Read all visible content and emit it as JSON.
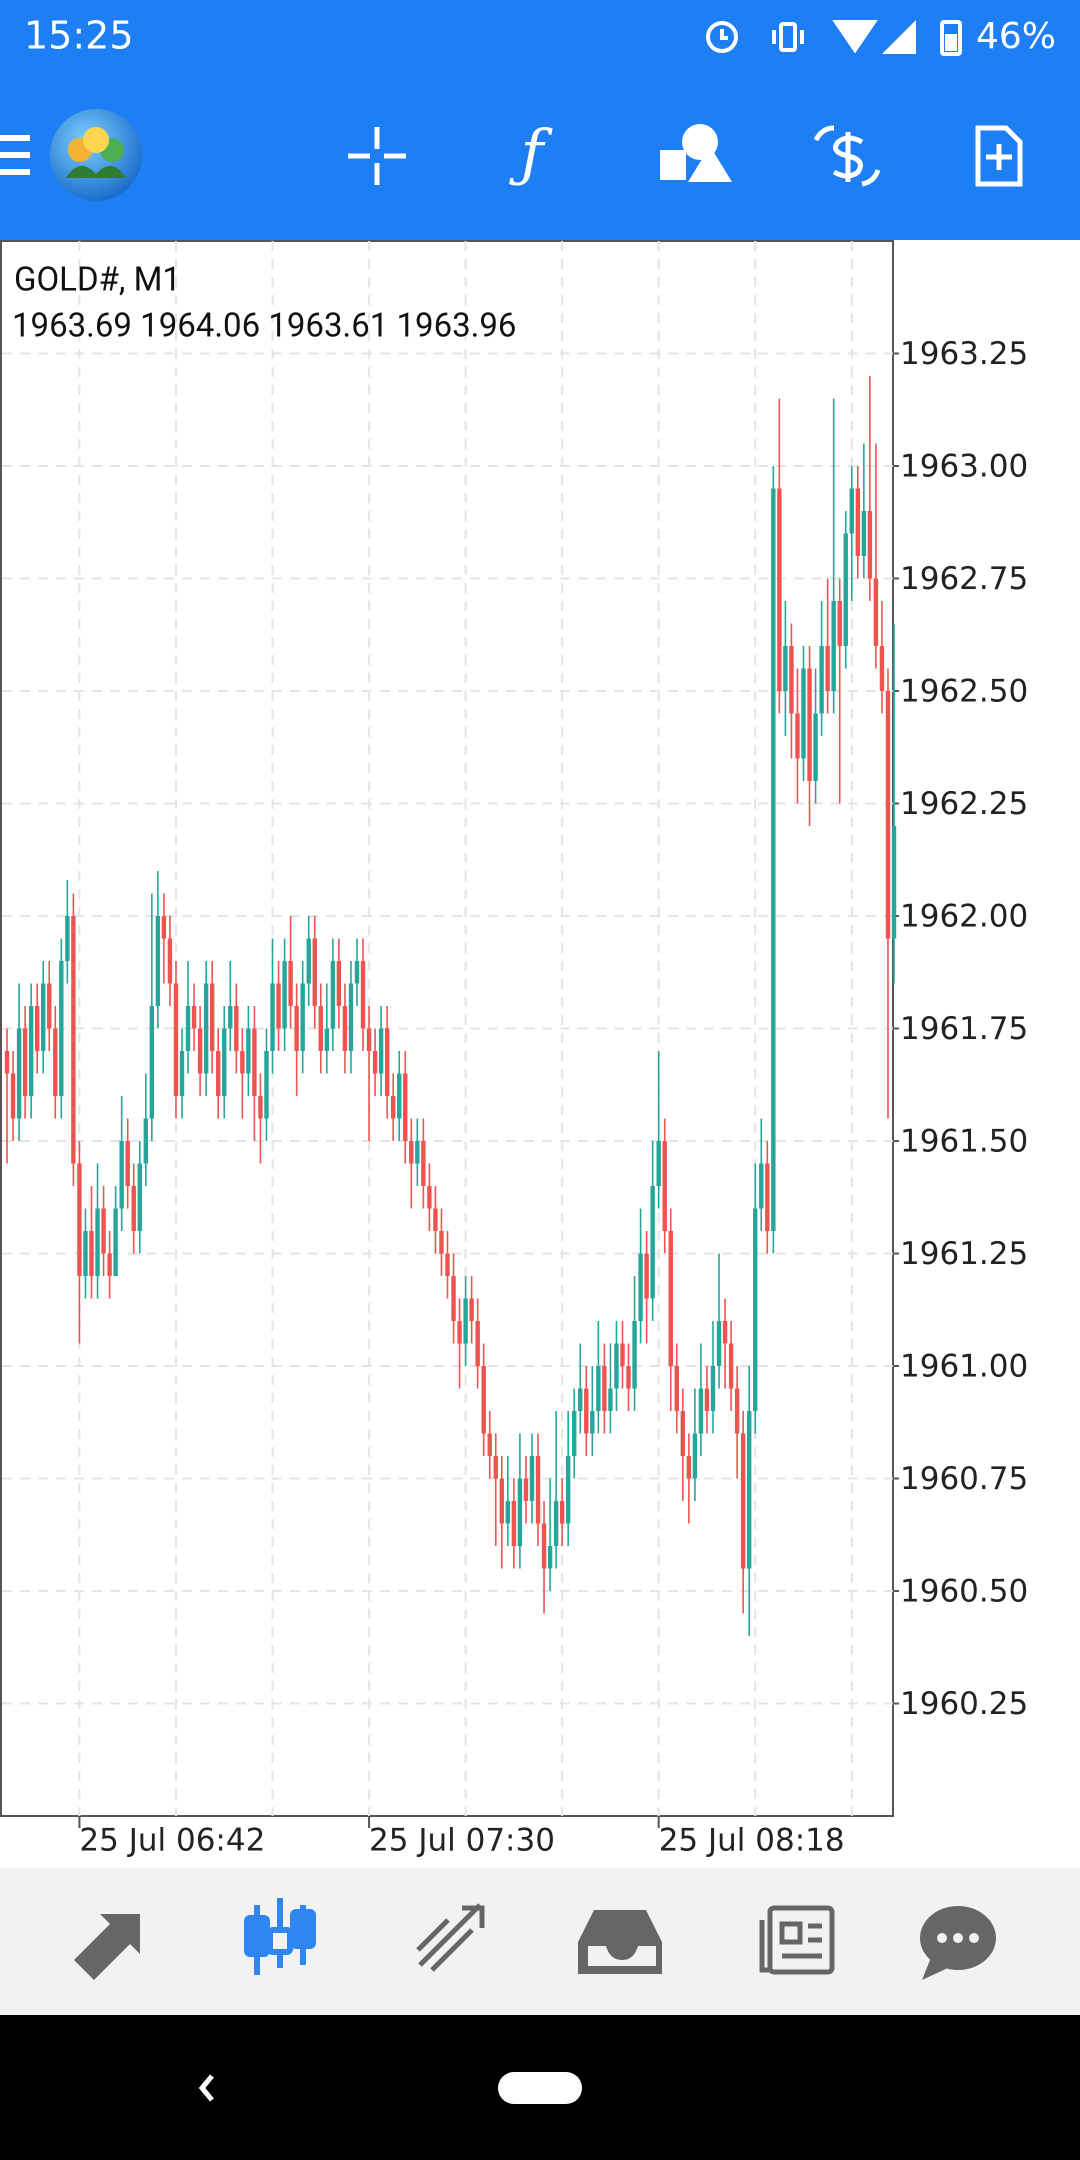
{
  "status_bar": {
    "time": "15:25",
    "battery": "46%"
  },
  "chart_data": {
    "type": "candlestick",
    "title": "GOLD#, M1",
    "subtitle": "1963.69 1964.06 1963.61 1963.96",
    "up_color": "#26a69a",
    "down_color": "#ef5350",
    "grid": true,
    "ylim": [
      1960,
      1963.5
    ],
    "yticks": [
      1963.25,
      {
        "value": 1963,
        "label": "1963.00"
      },
      1962.75,
      {
        "value": 1962.5,
        "label": "1962.50"
      },
      1962.25,
      {
        "value": 1962,
        "label": "1962.00"
      },
      1961.75,
      {
        "value": 1961.5,
        "label": "1961.50"
      },
      1961.25,
      {
        "value": 1961,
        "label": "1961.00"
      },
      1960.75,
      {
        "value": 1960.5,
        "label": "1960.50"
      },
      1960.25
    ],
    "categories": [
      null,
      null,
      null,
      null,
      null,
      null,
      null,
      null,
      null,
      null,
      null,
      null,
      "25 Jul 06:42",
      null,
      null,
      null,
      null,
      null,
      null,
      null,
      null,
      null,
      null,
      null,
      null,
      null,
      null,
      null,
      null,
      null,
      null,
      null,
      null,
      null,
      null,
      null,
      null,
      null,
      null,
      null,
      null,
      null,
      null,
      null,
      null,
      null,
      null,
      null,
      null,
      null,
      null,
      null,
      null,
      null,
      null,
      null,
      null,
      null,
      null,
      null,
      "25 Jul 07:30",
      null,
      null,
      null,
      null,
      null,
      null,
      null,
      null,
      null,
      null,
      null,
      null,
      null,
      null,
      null,
      null,
      null,
      null,
      null,
      null,
      null,
      null,
      null,
      null,
      null,
      null,
      null,
      null,
      null,
      null,
      null,
      null,
      null,
      null,
      null,
      null,
      null,
      null,
      null,
      null,
      null,
      null,
      null,
      null,
      null,
      null,
      null,
      "25 Jul 08:18",
      null,
      null,
      null,
      null,
      null,
      null,
      null,
      null,
      null,
      null,
      null,
      null,
      null,
      null,
      null,
      null,
      null,
      null,
      null,
      null,
      null,
      null,
      null,
      null,
      null,
      null,
      null,
      null,
      null,
      null,
      null,
      null,
      null,
      null,
      null,
      null,
      null,
      null
    ],
    "ohlc": [
      [
        1961.7,
        1961.75,
        1961.45,
        1961.65
      ],
      [
        1961.65,
        1961.7,
        1961.5,
        1961.55
      ],
      [
        1961.55,
        1961.85,
        1961.5,
        1961.75
      ],
      [
        1961.75,
        1961.8,
        1961.55,
        1961.6
      ],
      [
        1961.6,
        1961.85,
        1961.55,
        1961.8
      ],
      [
        1961.8,
        1961.85,
        1961.65,
        1961.7
      ],
      [
        1961.7,
        1961.9,
        1961.65,
        1961.85
      ],
      [
        1961.85,
        1961.9,
        1961.7,
        1961.75
      ],
      [
        1961.75,
        1961.8,
        1961.55,
        1961.6
      ],
      [
        1961.6,
        1961.95,
        1961.55,
        1961.9
      ],
      [
        1961.9,
        1962.08,
        1961.85,
        1962
      ],
      [
        1962,
        1962.05,
        1961.4,
        1961.45
      ],
      [
        1961.45,
        1961.5,
        1961.05,
        1961.2
      ],
      [
        1961.2,
        1961.35,
        1961.15,
        1961.3
      ],
      [
        1961.3,
        1961.4,
        1961.15,
        1961.2
      ],
      [
        1961.2,
        1961.45,
        1961.15,
        1961.35
      ],
      [
        1961.35,
        1961.4,
        1961.2,
        1961.25
      ],
      [
        1961.25,
        1961.3,
        1961.15,
        1961.2
      ],
      [
        1961.2,
        1961.4,
        1961.2,
        1961.35
      ],
      [
        1961.35,
        1961.6,
        1961.3,
        1961.5
      ],
      [
        1961.5,
        1961.55,
        1961.35,
        1961.4
      ],
      [
        1961.4,
        1961.45,
        1961.25,
        1961.3
      ],
      [
        1961.3,
        1961.5,
        1961.25,
        1961.45
      ],
      [
        1961.45,
        1961.65,
        1961.4,
        1961.55
      ],
      [
        1961.55,
        1962.05,
        1961.5,
        1961.8
      ],
      [
        1961.8,
        1962.1,
        1961.75,
        1962
      ],
      [
        1962,
        1962.05,
        1961.85,
        1961.95
      ],
      [
        1961.95,
        1962,
        1961.8,
        1961.85
      ],
      [
        1961.85,
        1961.9,
        1961.55,
        1961.6
      ],
      [
        1961.6,
        1961.75,
        1961.55,
        1961.7
      ],
      [
        1961.7,
        1961.9,
        1961.65,
        1961.8
      ],
      [
        1961.8,
        1961.85,
        1961.7,
        1961.75
      ],
      [
        1961.75,
        1961.8,
        1961.6,
        1961.65
      ],
      [
        1961.65,
        1961.9,
        1961.6,
        1961.85
      ],
      [
        1961.85,
        1961.9,
        1961.65,
        1961.7
      ],
      [
        1961.7,
        1961.75,
        1961.55,
        1961.6
      ],
      [
        1961.6,
        1961.8,
        1961.55,
        1961.75
      ],
      [
        1961.75,
        1961.9,
        1961.7,
        1961.8
      ],
      [
        1961.8,
        1961.85,
        1961.65,
        1961.7
      ],
      [
        1961.7,
        1961.75,
        1961.55,
        1961.65
      ],
      [
        1961.65,
        1961.8,
        1961.6,
        1961.75
      ],
      [
        1961.75,
        1961.8,
        1961.5,
        1961.6
      ],
      [
        1961.6,
        1961.65,
        1961.45,
        1961.55
      ],
      [
        1961.55,
        1961.75,
        1961.5,
        1961.7
      ],
      [
        1961.7,
        1961.95,
        1961.65,
        1961.85
      ],
      [
        1961.85,
        1961.9,
        1961.7,
        1961.75
      ],
      [
        1961.75,
        1961.95,
        1961.7,
        1961.9
      ],
      [
        1961.9,
        1962,
        1961.75,
        1961.8
      ],
      [
        1961.8,
        1961.85,
        1961.6,
        1961.7
      ],
      [
        1961.7,
        1961.9,
        1961.65,
        1961.85
      ],
      [
        1961.85,
        1962,
        1961.8,
        1961.95
      ],
      [
        1961.95,
        1962,
        1961.75,
        1961.8
      ],
      [
        1961.8,
        1961.85,
        1961.65,
        1961.7
      ],
      [
        1961.7,
        1961.85,
        1961.65,
        1961.75
      ],
      [
        1961.75,
        1961.95,
        1961.7,
        1961.9
      ],
      [
        1961.9,
        1961.95,
        1961.75,
        1961.8
      ],
      [
        1961.8,
        1961.85,
        1961.65,
        1961.7
      ],
      [
        1961.7,
        1961.9,
        1961.65,
        1961.85
      ],
      [
        1961.85,
        1961.95,
        1961.8,
        1961.9
      ],
      [
        1961.9,
        1961.95,
        1961.7,
        1961.75
      ],
      [
        1961.75,
        1961.8,
        1961.5,
        1961.7
      ],
      [
        1961.7,
        1961.75,
        1961.6,
        1961.65
      ],
      [
        1961.65,
        1961.8,
        1961.6,
        1961.75
      ],
      [
        1961.75,
        1961.8,
        1961.55,
        1961.6
      ],
      [
        1961.6,
        1961.65,
        1961.5,
        1961.55
      ],
      [
        1961.55,
        1961.7,
        1961.5,
        1961.65
      ],
      [
        1961.65,
        1961.7,
        1961.45,
        1961.5
      ],
      [
        1961.5,
        1961.55,
        1961.35,
        1961.45
      ],
      [
        1961.45,
        1961.55,
        1961.4,
        1961.5
      ],
      [
        1961.5,
        1961.55,
        1961.35,
        1961.4
      ],
      [
        1961.4,
        1961.45,
        1961.3,
        1961.35
      ],
      [
        1961.35,
        1961.4,
        1961.25,
        1961.3
      ],
      [
        1961.3,
        1961.35,
        1961.2,
        1961.25
      ],
      [
        1961.25,
        1961.3,
        1961.15,
        1961.2
      ],
      [
        1961.2,
        1961.25,
        1961.05,
        1961.1
      ],
      [
        1961.1,
        1961.15,
        1960.95,
        1961.05
      ],
      [
        1961.05,
        1961.2,
        1961,
        1961.15
      ],
      [
        1961.15,
        1961.2,
        1961.05,
        1961.1
      ],
      [
        1961.1,
        1961.15,
        1960.95,
        1961
      ],
      [
        1961,
        1961.05,
        1960.8,
        1960.85
      ],
      [
        1960.85,
        1960.9,
        1960.75,
        1960.8
      ],
      [
        1960.8,
        1960.85,
        1960.6,
        1960.75
      ],
      [
        1960.75,
        1960.8,
        1960.55,
        1960.65
      ],
      [
        1960.65,
        1960.8,
        1960.6,
        1960.7
      ],
      [
        1960.7,
        1960.75,
        1960.55,
        1960.6
      ],
      [
        1960.6,
        1960.85,
        1960.55,
        1960.75
      ],
      [
        1960.75,
        1960.8,
        1960.65,
        1960.7
      ],
      [
        1960.7,
        1960.85,
        1960.65,
        1960.8
      ],
      [
        1960.8,
        1960.85,
        1960.6,
        1960.65
      ],
      [
        1960.65,
        1960.7,
        1960.45,
        1960.55
      ],
      [
        1960.55,
        1960.75,
        1960.5,
        1960.6
      ],
      [
        1960.6,
        1960.9,
        1960.55,
        1960.7
      ],
      [
        1960.7,
        1960.75,
        1960.6,
        1960.65
      ],
      [
        1960.65,
        1960.9,
        1960.6,
        1960.8
      ],
      [
        1960.8,
        1960.95,
        1960.75,
        1960.9
      ],
      [
        1960.9,
        1961.05,
        1960.85,
        1960.95
      ],
      [
        1960.95,
        1961,
        1960.8,
        1960.85
      ],
      [
        1960.85,
        1961,
        1960.8,
        1960.9
      ],
      [
        1960.9,
        1961.1,
        1960.85,
        1961
      ],
      [
        1961,
        1961.05,
        1960.85,
        1960.9
      ],
      [
        1960.9,
        1961.05,
        1960.85,
        1960.95
      ],
      [
        1960.95,
        1961.1,
        1960.9,
        1961.05
      ],
      [
        1961.05,
        1961.1,
        1960.95,
        1961
      ],
      [
        1961,
        1961.05,
        1960.9,
        1960.95
      ],
      [
        1960.95,
        1961.2,
        1960.9,
        1961.1
      ],
      [
        1961.1,
        1961.35,
        1961.05,
        1961.25
      ],
      [
        1961.25,
        1961.3,
        1961.05,
        1961.15
      ],
      [
        1961.15,
        1961.5,
        1961.1,
        1961.4
      ],
      [
        1961.4,
        1961.7,
        1961.35,
        1961.5
      ],
      [
        1961.5,
        1961.55,
        1961.25,
        1961.3
      ],
      [
        1961.3,
        1961.35,
        1960.9,
        1961
      ],
      [
        1961,
        1961.05,
        1960.85,
        1960.9
      ],
      [
        1960.9,
        1960.95,
        1960.7,
        1960.8
      ],
      [
        1960.8,
        1960.85,
        1960.65,
        1960.75
      ],
      [
        1960.75,
        1960.95,
        1960.7,
        1960.85
      ],
      [
        1960.85,
        1961.05,
        1960.8,
        1960.95
      ],
      [
        1960.95,
        1961,
        1960.85,
        1960.9
      ],
      [
        1960.9,
        1961.1,
        1960.85,
        1961
      ],
      [
        1961,
        1961.25,
        1960.95,
        1961.1
      ],
      [
        1961.1,
        1961.15,
        1960.95,
        1961.05
      ],
      [
        1961.05,
        1961.1,
        1960.9,
        1960.95
      ],
      [
        1960.95,
        1961,
        1960.75,
        1960.85
      ],
      [
        1960.85,
        1960.9,
        1960.45,
        1960.55
      ],
      [
        1960.55,
        1961,
        1960.4,
        1960.9
      ],
      [
        1960.9,
        1961.45,
        1960.85,
        1961.35
      ],
      [
        1961.35,
        1961.55,
        1961.3,
        1961.45
      ],
      [
        1961.45,
        1961.5,
        1961.25,
        1961.3
      ],
      [
        1961.3,
        1963,
        1961.25,
        1962.95
      ],
      [
        1962.95,
        1963.15,
        1962.45,
        1962.5
      ],
      [
        1962.5,
        1962.7,
        1962.4,
        1962.6
      ],
      [
        1962.6,
        1962.65,
        1962.35,
        1962.45
      ],
      [
        1962.45,
        1962.55,
        1962.25,
        1962.35
      ],
      [
        1962.35,
        1962.6,
        1962.3,
        1962.55
      ],
      [
        1962.55,
        1962.6,
        1962.2,
        1962.3
      ],
      [
        1962.3,
        1962.55,
        1962.25,
        1962.45
      ],
      [
        1962.45,
        1962.7,
        1962.4,
        1962.6
      ],
      [
        1962.6,
        1962.75,
        1962.45,
        1962.5
      ],
      [
        1962.5,
        1963.15,
        1962.45,
        1962.7
      ],
      [
        1962.7,
        1962.75,
        1962.25,
        1962.6
      ],
      [
        1962.6,
        1962.9,
        1962.55,
        1962.85
      ],
      [
        1962.85,
        1963,
        1962.7,
        1962.95
      ],
      [
        1962.95,
        1963,
        1962.75,
        1962.8
      ],
      [
        1962.8,
        1963.05,
        1962.75,
        1962.9
      ],
      [
        1962.9,
        1963.2,
        1962.7,
        1962.75
      ],
      [
        1962.75,
        1963.05,
        1962.55,
        1962.6
      ],
      [
        1962.6,
        1962.7,
        1962.45,
        1962.5
      ],
      [
        1962.5,
        1962.55,
        1961.55,
        1961.95
      ],
      [
        1961.95,
        1962.65,
        1961.85,
        1962.2
      ]
    ]
  }
}
